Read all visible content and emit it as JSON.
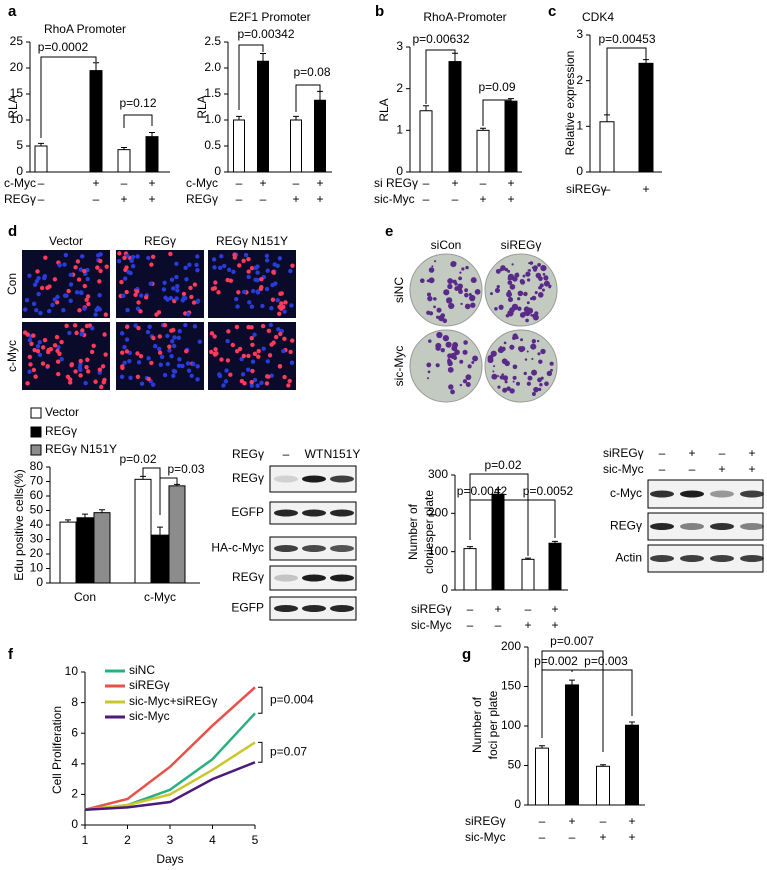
{
  "panel_labels": [
    "a",
    "b",
    "c",
    "d",
    "e",
    "f",
    "g"
  ],
  "chart_data": [
    {
      "type": "bar",
      "title": "RhoA  Promoter",
      "ylabel": "RLA",
      "values": [
        5,
        19.5,
        4.3,
        6.8
      ],
      "errors": [
        0.5,
        1.5,
        0.4,
        0.8
      ],
      "colors": [
        "#ffffff",
        "#000000",
        "#ffffff",
        "#000000"
      ],
      "ylim": [
        0,
        25
      ],
      "yticks": [
        0,
        5,
        10,
        15,
        20,
        25
      ],
      "conditions": [
        {
          "label": "c-Myc",
          "signs": [
            "–",
            "+",
            "–",
            "+"
          ]
        },
        {
          "label": "REGγ",
          "signs": [
            "–",
            "–",
            "+",
            "+"
          ]
        }
      ],
      "annotations": [
        "p=0.0002",
        "p=0.12"
      ]
    },
    {
      "type": "bar",
      "title": "E2F1 Promoter",
      "ylabel": "RLA",
      "values": [
        1.0,
        2.13,
        1.0,
        1.38
      ],
      "errors": [
        0.07,
        0.15,
        0.07,
        0.17
      ],
      "colors": [
        "#ffffff",
        "#000000",
        "#ffffff",
        "#000000"
      ],
      "ylim": [
        0,
        2.5
      ],
      "yticks": [
        0,
        0.5,
        {
          "value": 1,
          "label": "1.0"
        },
        1.5,
        {
          "value": 2,
          "label": "2.0"
        },
        2.5
      ],
      "conditions": [
        {
          "label": "c-Myc",
          "signs": [
            "–",
            "+",
            "–",
            "+"
          ]
        },
        {
          "label": "REGγ",
          "signs": [
            "–",
            "–",
            "+",
            "+"
          ]
        }
      ],
      "annotations": [
        "p=0.00342",
        "p=0.08"
      ]
    },
    {
      "type": "bar",
      "title": "RhoA-Promoter",
      "ylabel": "RLA",
      "values": [
        1.47,
        2.65,
        1.0,
        1.7
      ],
      "errors": [
        0.12,
        0.2,
        0.05,
        0.06
      ],
      "colors": [
        "#ffffff",
        "#000000",
        "#ffffff",
        "#000000"
      ],
      "ylim": [
        0,
        3
      ],
      "yticks": [
        0,
        1,
        2,
        3
      ],
      "conditions": [
        {
          "label": "si REGγ",
          "signs": [
            "–",
            "+",
            "–",
            "+"
          ]
        },
        {
          "label": "sic-Myc",
          "signs": [
            "–",
            "–",
            "+",
            "+"
          ]
        }
      ],
      "annotations": [
        "p=0.00632",
        "p=0.09"
      ]
    },
    {
      "type": "bar",
      "title": "CDK4",
      "ylabel": "Relative expression",
      "values": [
        1.1,
        2.38
      ],
      "errors": [
        0.15,
        0.08
      ],
      "colors": [
        "#ffffff",
        "#000000"
      ],
      "ylim": [
        0,
        3
      ],
      "yticks": [
        0,
        1,
        2,
        3
      ],
      "conditions": [
        {
          "label": "siREGγ",
          "signs": [
            "–",
            "+"
          ]
        }
      ],
      "annotations": [
        "p=0.00453"
      ]
    },
    {
      "type": "bar",
      "ylabel": "Edu positive cells(%)",
      "categories": [
        "Con",
        "c-Myc"
      ],
      "series": [
        {
          "name": "Vector",
          "color": "#ffffff",
          "values": [
            42,
            71.5
          ],
          "errors": [
            1.5,
            2
          ]
        },
        {
          "name": "REGγ",
          "color": "#000000",
          "values": [
            45,
            33
          ],
          "errors": [
            2.5,
            5.5
          ]
        },
        {
          "name": "REGγ N151Y",
          "color": "#8c8c8c",
          "values": [
            48.5,
            67
          ],
          "errors": [
            2,
            1
          ]
        }
      ],
      "ylim": [
        0,
        80
      ],
      "yticks": [
        0,
        10,
        20,
        30,
        40,
        50,
        60,
        70,
        80
      ],
      "annotations": [
        "p=0.02",
        "p=0.03"
      ]
    },
    {
      "type": "bar",
      "ylabel": [
        "Number of",
        "cloniesper plate"
      ],
      "values": [
        108,
        250,
        80,
        122
      ],
      "errors": [
        5,
        12,
        3,
        5
      ],
      "colors": [
        "#ffffff",
        "#000000",
        "#ffffff",
        "#000000"
      ],
      "ylim": [
        0,
        300
      ],
      "yticks": [
        0,
        100,
        200,
        300
      ],
      "conditions": [
        {
          "label": "siREGγ",
          "signs": [
            "–",
            "+",
            "–",
            "+"
          ]
        },
        {
          "label": "sic-Myc",
          "signs": [
            "–",
            "–",
            "+",
            "+"
          ]
        }
      ],
      "annotations": [
        "p=0.02",
        "p=0.0042",
        "p=0.0052"
      ]
    },
    {
      "type": "line",
      "xlabel": "Days",
      "ylabel": "Cell  Proliferation",
      "x": [
        1,
        2,
        3,
        4,
        5
      ],
      "xlim": [
        1,
        5
      ],
      "xticks": [
        1,
        2,
        3,
        4,
        5
      ],
      "ylim": [
        0,
        10
      ],
      "yticks": [
        0,
        2,
        4,
        6,
        8,
        10
      ],
      "series": [
        {
          "name": "siNC",
          "color": "#2ab07f",
          "values": [
            1,
            1.3,
            2.3,
            4.3,
            7.3
          ]
        },
        {
          "name": "siREGγ",
          "color": "#e8504a",
          "values": [
            1,
            1.7,
            3.8,
            6.5,
            9
          ]
        },
        {
          "name": "sic-Myc+siREGγ",
          "color": "#c8c82a",
          "values": [
            1,
            1.3,
            2.0,
            3.6,
            5.4
          ]
        },
        {
          "name": "sic-Myc",
          "color": "#4b1a7a",
          "values": [
            1,
            1.15,
            1.5,
            3.0,
            4.1
          ]
        }
      ],
      "annotations": [
        "p=0.004",
        "p=0.07"
      ]
    },
    {
      "type": "bar",
      "ylabel": [
        "Number of",
        "foci per plate"
      ],
      "values": [
        72,
        152,
        49,
        101
      ],
      "errors": [
        3,
        6,
        2,
        4
      ],
      "colors": [
        "#ffffff",
        "#000000",
        "#ffffff",
        "#000000"
      ],
      "ylim": [
        0,
        200
      ],
      "yticks": [
        0,
        50,
        100,
        150,
        200
      ],
      "conditions": [
        {
          "label": "siREGγ",
          "signs": [
            "–",
            "+",
            "–",
            "+"
          ]
        },
        {
          "label": "sic-Myc",
          "signs": [
            "–",
            "–",
            "+",
            "+"
          ]
        }
      ],
      "annotations": [
        "p=0.007",
        "p=0.002",
        "p=0.003"
      ]
    }
  ],
  "micrographs": {
    "columns": [
      "Vector",
      "REGγ",
      "REGγ N151Y"
    ],
    "rows": [
      "Con",
      "c-Myc"
    ]
  },
  "plates": {
    "columns": [
      "siCon",
      "siREGγ"
    ],
    "rows": [
      "siNC",
      "sic-Myc"
    ]
  },
  "blot_d": {
    "header": "REGγ",
    "lanes": [
      "–",
      "WT",
      "N151Y"
    ],
    "bands": [
      "REGγ",
      "EGFP",
      "HA-c-Myc",
      "REGγ",
      "EGFP"
    ]
  },
  "blot_e": {
    "conditions": [
      {
        "label": "siREGγ",
        "signs": [
          "–",
          "+",
          "–",
          "+"
        ]
      },
      {
        "label": "sic-Myc",
        "signs": [
          "–",
          "–",
          "+",
          "+"
        ]
      }
    ],
    "bands": [
      "c-Myc",
      "REGγ",
      "Actin"
    ]
  }
}
